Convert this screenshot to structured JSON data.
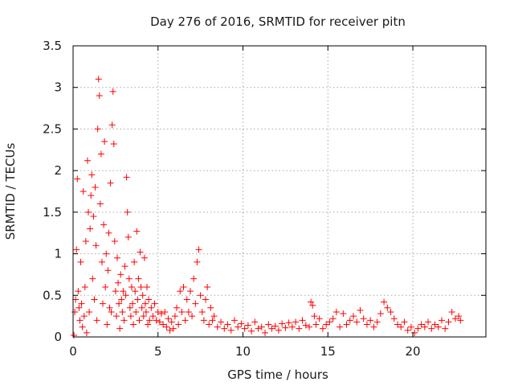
{
  "chart_data": {
    "type": "scatter",
    "title": "Day 276 of 2016, SRMTID for receiver pitn",
    "xlabel": "GPS time / hours",
    "ylabel": "SRMTID / TECUs",
    "xlim": [
      0,
      24.3
    ],
    "ylim": [
      0,
      3.5
    ],
    "xticks": [
      "0",
      "5",
      "10",
      "15",
      "20"
    ],
    "yticks": [
      "0",
      "0.5",
      "1",
      "1.5",
      "2",
      "2.5",
      "3",
      "3.5"
    ],
    "grid": true,
    "marker": "plus",
    "color": "#ff0000",
    "series": [
      {
        "name": "SRMTID",
        "points": [
          [
            0.05,
            0.02
          ],
          [
            0.1,
            0.3
          ],
          [
            0.15,
            0.45
          ],
          [
            0.2,
            1.05
          ],
          [
            0.25,
            1.9
          ],
          [
            0.3,
            0.55
          ],
          [
            0.35,
            0.35
          ],
          [
            0.4,
            0.2
          ],
          [
            0.45,
            0.9
          ],
          [
            0.5,
            0.4
          ],
          [
            0.55,
            0.12
          ],
          [
            0.6,
            1.75
          ],
          [
            0.65,
            0.25
          ],
          [
            0.7,
            0.6
          ],
          [
            0.75,
            1.15
          ],
          [
            0.8,
            0.05
          ],
          [
            0.85,
            2.12
          ],
          [
            0.9,
            1.5
          ],
          [
            0.95,
            0.3
          ],
          [
            1.0,
            1.3
          ],
          [
            1.05,
            1.7
          ],
          [
            1.1,
            1.95
          ],
          [
            1.15,
            0.7
          ],
          [
            1.2,
            1.45
          ],
          [
            1.25,
            0.45
          ],
          [
            1.3,
            1.8
          ],
          [
            1.35,
            1.1
          ],
          [
            1.4,
            0.2
          ],
          [
            1.45,
            2.5
          ],
          [
            1.5,
            3.1
          ],
          [
            1.55,
            2.9
          ],
          [
            1.6,
            1.6
          ],
          [
            1.65,
            2.2
          ],
          [
            1.7,
            0.9
          ],
          [
            1.75,
            0.4
          ],
          [
            1.8,
            1.35
          ],
          [
            1.85,
            2.35
          ],
          [
            1.9,
            0.6
          ],
          [
            1.95,
            1.0
          ],
          [
            2.0,
            0.15
          ],
          [
            2.05,
            0.8
          ],
          [
            2.1,
            1.25
          ],
          [
            2.15,
            0.35
          ],
          [
            2.2,
            1.85
          ],
          [
            2.25,
            0.3
          ],
          [
            2.3,
            2.55
          ],
          [
            2.35,
            2.95
          ],
          [
            2.4,
            2.32
          ],
          [
            2.45,
            1.15
          ],
          [
            2.5,
            0.55
          ],
          [
            2.55,
            0.25
          ],
          [
            2.6,
            0.95
          ],
          [
            2.65,
            0.65
          ],
          [
            2.7,
            0.4
          ],
          [
            2.75,
            0.1
          ],
          [
            2.8,
            0.75
          ],
          [
            2.85,
            0.45
          ],
          [
            2.9,
            0.3
          ],
          [
            2.95,
            0.55
          ],
          [
            3.0,
            0.2
          ],
          [
            3.05,
            0.85
          ],
          [
            3.1,
            0.5
          ],
          [
            3.15,
            1.92
          ],
          [
            3.2,
            1.5
          ],
          [
            3.25,
            1.2
          ],
          [
            3.3,
            0.7
          ],
          [
            3.35,
            0.35
          ],
          [
            3.4,
            0.25
          ],
          [
            3.45,
            0.6
          ],
          [
            3.5,
            0.4
          ],
          [
            3.55,
            0.15
          ],
          [
            3.6,
            0.9
          ],
          [
            3.65,
            0.55
          ],
          [
            3.7,
            0.3
          ],
          [
            3.75,
            1.27
          ],
          [
            3.8,
            0.45
          ],
          [
            3.85,
            0.7
          ],
          [
            3.9,
            0.2
          ],
          [
            3.95,
            1.02
          ],
          [
            4.0,
            0.6
          ],
          [
            4.05,
            0.35
          ],
          [
            4.1,
            0.5
          ],
          [
            4.15,
            0.25
          ],
          [
            4.2,
            0.95
          ],
          [
            4.25,
            0.4
          ],
          [
            4.3,
            0.3
          ],
          [
            4.35,
            0.6
          ],
          [
            4.4,
            0.15
          ],
          [
            4.45,
            0.45
          ],
          [
            4.5,
            0.2
          ],
          [
            4.6,
            0.35
          ],
          [
            4.7,
            0.25
          ],
          [
            4.8,
            0.4
          ],
          [
            4.9,
            0.2
          ],
          [
            5.0,
            0.3
          ],
          [
            5.1,
            0.18
          ],
          [
            5.2,
            0.28
          ],
          [
            5.3,
            0.15
          ],
          [
            5.4,
            0.3
          ],
          [
            5.5,
            0.12
          ],
          [
            5.6,
            0.22
          ],
          [
            5.7,
            0.08
          ],
          [
            5.8,
            0.18
          ],
          [
            5.9,
            0.1
          ],
          [
            6.0,
            0.25
          ],
          [
            6.1,
            0.35
          ],
          [
            6.2,
            0.15
          ],
          [
            6.3,
            0.55
          ],
          [
            6.4,
            0.3
          ],
          [
            6.5,
            0.6
          ],
          [
            6.6,
            0.2
          ],
          [
            6.7,
            0.45
          ],
          [
            6.8,
            0.3
          ],
          [
            6.9,
            0.55
          ],
          [
            7.0,
            0.25
          ],
          [
            7.1,
            0.7
          ],
          [
            7.2,
            0.4
          ],
          [
            7.3,
            0.9
          ],
          [
            7.4,
            1.05
          ],
          [
            7.5,
            0.5
          ],
          [
            7.6,
            0.3
          ],
          [
            7.7,
            0.2
          ],
          [
            7.8,
            0.45
          ],
          [
            7.9,
            0.6
          ],
          [
            8.0,
            0.15
          ],
          [
            8.1,
            0.35
          ],
          [
            8.2,
            0.2
          ],
          [
            8.3,
            0.25
          ],
          [
            8.5,
            0.12
          ],
          [
            8.7,
            0.18
          ],
          [
            8.9,
            0.1
          ],
          [
            9.1,
            0.15
          ],
          [
            9.3,
            0.08
          ],
          [
            9.5,
            0.2
          ],
          [
            9.7,
            0.12
          ],
          [
            9.9,
            0.16
          ],
          [
            10.1,
            0.1
          ],
          [
            10.3,
            0.14
          ],
          [
            10.5,
            0.07
          ],
          [
            10.7,
            0.18
          ],
          [
            10.9,
            0.1
          ],
          [
            11.1,
            0.12
          ],
          [
            11.3,
            0.05
          ],
          [
            11.5,
            0.15
          ],
          [
            11.7,
            0.1
          ],
          [
            11.9,
            0.13
          ],
          [
            12.1,
            0.08
          ],
          [
            12.3,
            0.16
          ],
          [
            12.5,
            0.11
          ],
          [
            12.7,
            0.17
          ],
          [
            12.9,
            0.12
          ],
          [
            13.1,
            0.18
          ],
          [
            13.3,
            0.1
          ],
          [
            13.5,
            0.2
          ],
          [
            13.7,
            0.14
          ],
          [
            13.9,
            0.12
          ],
          [
            14.0,
            0.42
          ],
          [
            14.1,
            0.38
          ],
          [
            14.2,
            0.25
          ],
          [
            14.3,
            0.15
          ],
          [
            14.5,
            0.22
          ],
          [
            14.7,
            0.1
          ],
          [
            14.9,
            0.15
          ],
          [
            15.1,
            0.18
          ],
          [
            15.3,
            0.22
          ],
          [
            15.5,
            0.3
          ],
          [
            15.7,
            0.12
          ],
          [
            15.9,
            0.28
          ],
          [
            16.1,
            0.15
          ],
          [
            16.3,
            0.2
          ],
          [
            16.5,
            0.25
          ],
          [
            16.7,
            0.18
          ],
          [
            16.9,
            0.32
          ],
          [
            17.1,
            0.22
          ],
          [
            17.3,
            0.15
          ],
          [
            17.5,
            0.2
          ],
          [
            17.7,
            0.12
          ],
          [
            17.9,
            0.18
          ],
          [
            18.1,
            0.28
          ],
          [
            18.3,
            0.42
          ],
          [
            18.5,
            0.35
          ],
          [
            18.7,
            0.3
          ],
          [
            18.9,
            0.22
          ],
          [
            19.1,
            0.15
          ],
          [
            19.3,
            0.12
          ],
          [
            19.5,
            0.18
          ],
          [
            19.7,
            0.08
          ],
          [
            19.9,
            0.12
          ],
          [
            20.1,
            0.05
          ],
          [
            20.3,
            0.1
          ],
          [
            20.5,
            0.15
          ],
          [
            20.7,
            0.12
          ],
          [
            20.9,
            0.18
          ],
          [
            21.1,
            0.1
          ],
          [
            21.3,
            0.15
          ],
          [
            21.5,
            0.12
          ],
          [
            21.7,
            0.2
          ],
          [
            21.9,
            0.1
          ],
          [
            22.1,
            0.18
          ],
          [
            22.3,
            0.3
          ],
          [
            22.5,
            0.22
          ],
          [
            22.7,
            0.25
          ],
          [
            22.8,
            0.2
          ]
        ]
      }
    ]
  }
}
